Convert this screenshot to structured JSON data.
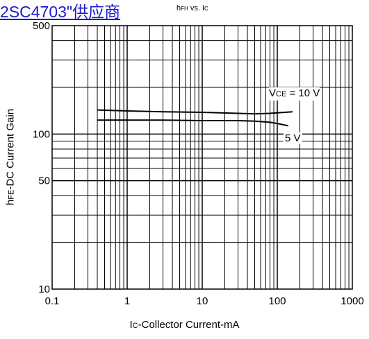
{
  "watermark": "2SC4703\"供应商",
  "chart_data": {
    "type": "line",
    "title_main": "h",
    "title_sub": "FH",
    "title_rest": " vs. I",
    "title_sub2": "C",
    "xlabel_main": "I",
    "xlabel_sub": "C",
    "xlabel_rest": "-Collector Current-mA",
    "ylabel_main": "h",
    "ylabel_sub": "FE",
    "ylabel_rest": "-DC Current Gain",
    "x_scale": "log",
    "y_scale": "log",
    "xlim": [
      0.1,
      1000
    ],
    "ylim": [
      10,
      500
    ],
    "x_ticks": [
      "0.1",
      "1",
      "10",
      "100",
      "1000"
    ],
    "y_ticks": [
      "10",
      "50",
      "100",
      "500"
    ],
    "grid": true,
    "series": [
      {
        "name_main": "V",
        "name_sub": "CE",
        "name_rest": " = 10 V",
        "x": [
          0.4,
          1,
          3,
          10,
          30,
          50,
          80,
          100,
          160
        ],
        "y": [
          143,
          141,
          139,
          138,
          136,
          135,
          136,
          137,
          139
        ]
      },
      {
        "name_main": "5 V",
        "x": [
          0.4,
          1,
          3,
          10,
          30,
          50,
          80,
          100,
          140
        ],
        "y": [
          123,
          123,
          123,
          122,
          122,
          121,
          119,
          117,
          113
        ]
      }
    ]
  }
}
